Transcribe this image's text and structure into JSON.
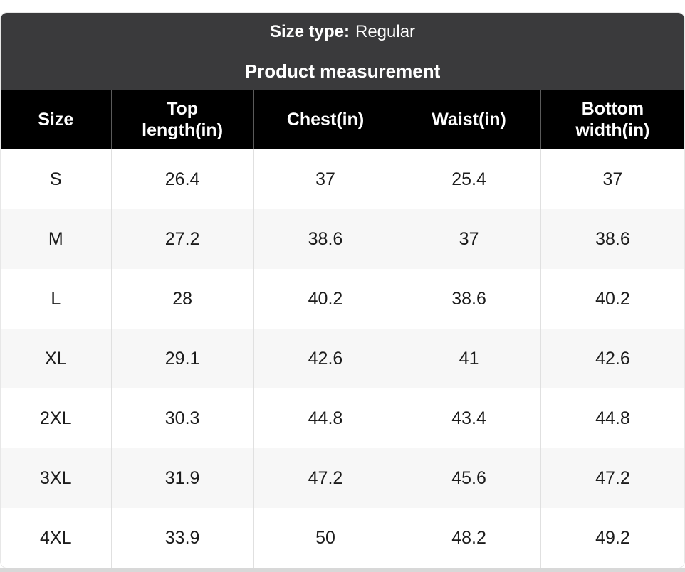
{
  "card": {
    "size_type": {
      "label": "Size type:",
      "value": "Regular"
    },
    "title": "Product measurement"
  },
  "table": {
    "columns": [
      {
        "id": "size",
        "label": "Size"
      },
      {
        "id": "top-length",
        "label": "Top length(in)"
      },
      {
        "id": "chest",
        "label": "Chest(in)"
      },
      {
        "id": "waist",
        "label": "Waist(in)"
      },
      {
        "id": "bottom-width",
        "label": "Bottom width(in)"
      }
    ],
    "rows": [
      {
        "size": "S",
        "cells": [
          "S",
          "26.4",
          "37",
          "25.4",
          "37"
        ]
      },
      {
        "size": "M",
        "cells": [
          "M",
          "27.2",
          "38.6",
          "37",
          "38.6"
        ]
      },
      {
        "size": "L",
        "cells": [
          "L",
          "28",
          "40.2",
          "38.6",
          "40.2"
        ]
      },
      {
        "size": "XL",
        "cells": [
          "XL",
          "29.1",
          "42.6",
          "41",
          "42.6"
        ]
      },
      {
        "size": "2XL",
        "cells": [
          "2XL",
          "30.3",
          "44.8",
          "43.4",
          "44.8"
        ]
      },
      {
        "size": "3XL",
        "cells": [
          "3XL",
          "31.9",
          "47.2",
          "45.6",
          "47.2"
        ]
      },
      {
        "size": "4XL",
        "cells": [
          "4XL",
          "33.9",
          "50",
          "48.2",
          "49.2"
        ]
      }
    ]
  },
  "chart_data": {
    "type": "table",
    "title": "Product measurement",
    "subtitle": "Size type: Regular",
    "columns": [
      "Size",
      "Top length(in)",
      "Chest(in)",
      "Waist(in)",
      "Bottom width(in)"
    ],
    "rows": [
      [
        "S",
        26.4,
        37,
        25.4,
        37
      ],
      [
        "M",
        27.2,
        38.6,
        37,
        38.6
      ],
      [
        "L",
        28,
        40.2,
        38.6,
        40.2
      ],
      [
        "XL",
        29.1,
        42.6,
        41,
        42.6
      ],
      [
        "2XL",
        30.3,
        44.8,
        43.4,
        44.8
      ],
      [
        "3XL",
        31.9,
        47.2,
        45.6,
        47.2
      ],
      [
        "4XL",
        33.9,
        50,
        48.2,
        49.2
      ]
    ]
  },
  "colors": {
    "header_bg": "#3a3a3c",
    "column_header_bg": "#000000",
    "row_alt_bg": "#f7f7f7",
    "text_on_dark": "#ffffff",
    "data_text": "#1c1c1c",
    "divider_light": "#e0e0e0",
    "divider_dark": "#5a5a5a",
    "bottom_strip": "#d8d8d8"
  }
}
